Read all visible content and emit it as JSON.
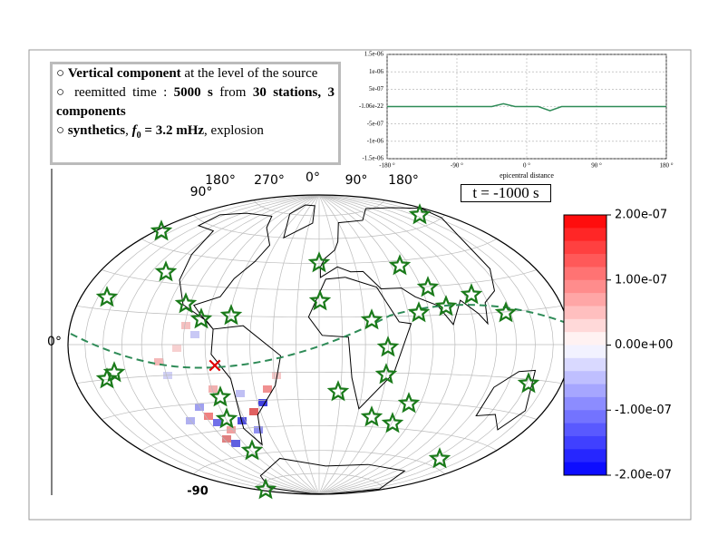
{
  "text_box": {
    "lines": [
      [
        {
          "text": "○ "
        },
        {
          "text": "Vertical component",
          "bold": true
        },
        {
          "text": " at the level of the source"
        }
      ],
      [
        {
          "text": "○ reemitted time : "
        },
        {
          "text": "5000 s",
          "bold": true
        },
        {
          "text": " from "
        },
        {
          "text": "30 stations, 3 components",
          "bold": true
        }
      ],
      [
        {
          "text": "○ "
        },
        {
          "text": "synthetics",
          "bold": true
        },
        {
          "text": ", "
        },
        {
          "text": "f",
          "bold": true,
          "italic": true
        },
        {
          "text": "0",
          "sub": true
        },
        {
          "text": " = 3.2 mHz",
          "bold": true
        },
        {
          "text": ", explosion"
        }
      ]
    ]
  },
  "map": {
    "time_label": "t = -1000 s",
    "lon_labels": [
      "180°",
      "270°",
      "0°",
      "90°",
      "180°"
    ],
    "lat_labels": [
      "90°",
      "0°",
      "-90"
    ]
  },
  "chart_data": [
    {
      "type": "line",
      "xlabel": "epicentral distance",
      "x": [
        -180,
        -165,
        -150,
        -135,
        -120,
        -105,
        -90,
        -75,
        -60,
        -45,
        -30,
        -15,
        0,
        15,
        30,
        45,
        60,
        75,
        90,
        105,
        120,
        135,
        150,
        165,
        180
      ],
      "series": [
        {
          "color": "#2e8b57",
          "values": [
            0,
            0,
            0,
            0,
            0,
            0,
            0,
            0,
            0,
            0,
            8e-08,
            0,
            0,
            0,
            -1.2e-07,
            0,
            0,
            0,
            0,
            0,
            0,
            0,
            0,
            0,
            0
          ]
        }
      ],
      "xlim": [
        -180,
        180
      ],
      "ylim": [
        -1.5e-06,
        1.5e-06
      ],
      "xticks": [
        {
          "value": -180,
          "label": "-180 °"
        },
        {
          "value": -90,
          "label": "-90 °"
        },
        {
          "value": 0,
          "label": "0 °"
        },
        {
          "value": 90,
          "label": "90 °"
        },
        {
          "value": 180,
          "label": "180 °"
        }
      ],
      "yticks": [
        {
          "value": 1.5e-06,
          "label": "1.5e-06"
        },
        {
          "value": 1e-06,
          "label": "1e-06"
        },
        {
          "value": 5e-07,
          "label": "5e-07"
        },
        {
          "value": -1.06e-22,
          "label": "-1.06e-22"
        },
        {
          "value": -5e-07,
          "label": "-5e-07"
        },
        {
          "value": -1e-06,
          "label": "-1e-06"
        },
        {
          "value": -1.5e-06,
          "label": "-1.5e-06"
        }
      ],
      "grid": true
    },
    {
      "type": "colorbar",
      "ylim": [
        -2e-07,
        2e-07
      ],
      "yticks": [
        {
          "value": 2e-07,
          "label": "2.00e-07"
        },
        {
          "value": 1e-07,
          "label": "1.00e-07"
        },
        {
          "value": 0,
          "label": "0.00e+00"
        },
        {
          "value": -1e-07,
          "label": "-1.00e-07"
        },
        {
          "value": -2e-07,
          "label": "-2.00e-07"
        }
      ],
      "colors": [
        "#ff0000",
        "#ffffff",
        "#0000ff"
      ]
    }
  ]
}
